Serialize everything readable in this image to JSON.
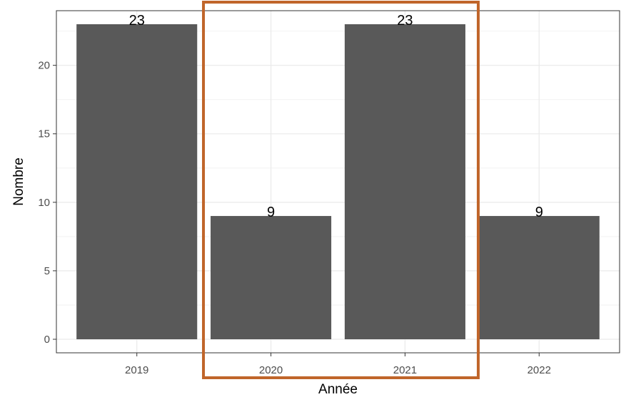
{
  "chart_data": {
    "type": "bar",
    "categories": [
      "2019",
      "2020",
      "2021",
      "2022"
    ],
    "values": [
      23,
      9,
      23,
      9
    ],
    "data_labels": [
      "23",
      "9",
      "23",
      "9"
    ],
    "xlabel": "Année",
    "ylabel": "Nombre",
    "ylim": [
      0,
      24.2
    ],
    "y_ticks": [
      0,
      5,
      10,
      15,
      20
    ],
    "y_tick_labels": [
      "0",
      "5",
      "10",
      "15",
      "20"
    ],
    "grid": true,
    "legend": "none",
    "bar_color": "#595959",
    "highlight": {
      "categories": [
        "2020",
        "2021"
      ],
      "color": "#c0652a"
    }
  }
}
